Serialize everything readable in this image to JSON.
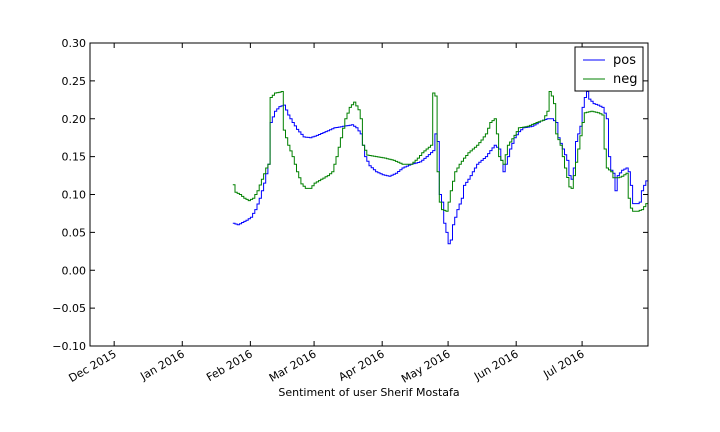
{
  "chart_data": {
    "type": "line",
    "title": "",
    "xlabel": "Sentiment of user Sherif Mostafa",
    "ylabel": "",
    "ylim": [
      -0.1,
      0.3
    ],
    "xlim": [
      "2015-11-20",
      "2016-07-31"
    ],
    "grid": false,
    "legend_position": "top-right",
    "y_ticks": [
      "−0.10",
      "−0.05",
      "0.00",
      "0.05",
      "0.10",
      "0.15",
      "0.20",
      "0.25",
      "0.30"
    ],
    "x_ticks": [
      {
        "date": "2015-12-01",
        "label": "Dec 2015"
      },
      {
        "date": "2016-01-01",
        "label": "Jan 2016"
      },
      {
        "date": "2016-02-01",
        "label": "Feb 2016"
      },
      {
        "date": "2016-03-01",
        "label": "Mar 2016"
      },
      {
        "date": "2016-04-01",
        "label": "Apr 2016"
      },
      {
        "date": "2016-05-01",
        "label": "May 2016"
      },
      {
        "date": "2016-06-01",
        "label": "Jun 2016"
      },
      {
        "date": "2016-07-01",
        "label": "Jul 2016"
      }
    ],
    "series": [
      {
        "name": "pos",
        "color": "#0000ff",
        "points": [
          [
            "2016-01-24",
            0.062
          ],
          [
            "2016-01-26",
            0.06
          ],
          [
            "2016-01-28",
            0.063
          ],
          [
            "2016-01-30",
            0.066
          ],
          [
            "2016-02-01",
            0.07
          ],
          [
            "2016-02-03",
            0.08
          ],
          [
            "2016-02-05",
            0.095
          ],
          [
            "2016-02-07",
            0.115
          ],
          [
            "2016-02-09",
            0.14
          ],
          [
            "2016-02-10",
            0.195
          ],
          [
            "2016-02-12",
            0.21
          ],
          [
            "2016-02-14",
            0.216
          ],
          [
            "2016-02-16",
            0.218
          ],
          [
            "2016-02-18",
            0.205
          ],
          [
            "2016-02-20",
            0.195
          ],
          [
            "2016-02-22",
            0.186
          ],
          [
            "2016-02-25",
            0.176
          ],
          [
            "2016-02-28",
            0.175
          ],
          [
            "2016-03-02",
            0.178
          ],
          [
            "2016-03-06",
            0.183
          ],
          [
            "2016-03-10",
            0.188
          ],
          [
            "2016-03-14",
            0.19
          ],
          [
            "2016-03-18",
            0.192
          ],
          [
            "2016-03-20",
            0.188
          ],
          [
            "2016-03-22",
            0.18
          ],
          [
            "2016-03-24",
            0.15
          ],
          [
            "2016-03-26",
            0.138
          ],
          [
            "2016-03-29",
            0.13
          ],
          [
            "2016-04-01",
            0.126
          ],
          [
            "2016-04-04",
            0.124
          ],
          [
            "2016-04-07",
            0.128
          ],
          [
            "2016-04-10",
            0.135
          ],
          [
            "2016-04-14",
            0.14
          ],
          [
            "2016-04-18",
            0.143
          ],
          [
            "2016-04-21",
            0.15
          ],
          [
            "2016-04-24",
            0.158
          ],
          [
            "2016-04-25",
            0.18
          ],
          [
            "2016-04-26",
            0.17
          ],
          [
            "2016-04-27",
            0.1
          ],
          [
            "2016-04-28",
            0.09
          ],
          [
            "2016-04-29",
            0.062
          ],
          [
            "2016-04-30",
            0.05
          ],
          [
            "2016-05-01",
            0.035
          ],
          [
            "2016-05-02",
            0.04
          ],
          [
            "2016-05-03",
            0.06
          ],
          [
            "2016-05-05",
            0.08
          ],
          [
            "2016-05-07",
            0.095
          ],
          [
            "2016-05-08",
            0.112
          ],
          [
            "2016-05-10",
            0.12
          ],
          [
            "2016-05-12",
            0.13
          ],
          [
            "2016-05-14",
            0.14
          ],
          [
            "2016-05-16",
            0.145
          ],
          [
            "2016-05-18",
            0.15
          ],
          [
            "2016-05-20",
            0.158
          ],
          [
            "2016-05-22",
            0.165
          ],
          [
            "2016-05-24",
            0.16
          ],
          [
            "2016-05-25",
            0.145
          ],
          [
            "2016-05-26",
            0.13
          ],
          [
            "2016-05-27",
            0.14
          ],
          [
            "2016-05-29",
            0.16
          ],
          [
            "2016-05-31",
            0.175
          ],
          [
            "2016-06-02",
            0.183
          ],
          [
            "2016-06-04",
            0.188
          ],
          [
            "2016-06-08",
            0.19
          ],
          [
            "2016-06-12",
            0.197
          ],
          [
            "2016-06-15",
            0.2
          ],
          [
            "2016-06-17",
            0.2
          ],
          [
            "2016-06-19",
            0.195
          ],
          [
            "2016-06-20",
            0.175
          ],
          [
            "2016-06-22",
            0.16
          ],
          [
            "2016-06-24",
            0.145
          ],
          [
            "2016-06-25",
            0.125
          ],
          [
            "2016-06-26",
            0.12
          ],
          [
            "2016-06-27",
            0.135
          ],
          [
            "2016-06-28",
            0.17
          ],
          [
            "2016-06-30",
            0.19
          ],
          [
            "2016-07-01",
            0.215
          ],
          [
            "2016-07-02",
            0.228
          ],
          [
            "2016-07-03",
            0.236
          ],
          [
            "2016-07-04",
            0.226
          ],
          [
            "2016-07-06",
            0.22
          ],
          [
            "2016-07-08",
            0.218
          ],
          [
            "2016-07-10",
            0.215
          ],
          [
            "2016-07-12",
            0.2
          ],
          [
            "2016-07-13",
            0.15
          ],
          [
            "2016-07-14",
            0.132
          ],
          [
            "2016-07-15",
            0.128
          ],
          [
            "2016-07-16",
            0.105
          ],
          [
            "2016-07-17",
            0.125
          ],
          [
            "2016-07-19",
            0.132
          ],
          [
            "2016-07-21",
            0.135
          ],
          [
            "2016-07-22",
            0.13
          ],
          [
            "2016-07-23",
            0.112
          ],
          [
            "2016-07-24",
            0.088
          ],
          [
            "2016-07-26",
            0.088
          ],
          [
            "2016-07-27",
            0.09
          ],
          [
            "2016-07-28",
            0.105
          ],
          [
            "2016-07-29",
            0.112
          ],
          [
            "2016-07-30",
            0.118
          ],
          [
            "2016-07-31",
            0.12
          ]
        ]
      },
      {
        "name": "neg",
        "color": "#008000",
        "points": [
          [
            "2016-01-24",
            0.113
          ],
          [
            "2016-01-25",
            0.103
          ],
          [
            "2016-01-27",
            0.1
          ],
          [
            "2016-01-29",
            0.095
          ],
          [
            "2016-01-31",
            0.092
          ],
          [
            "2016-02-02",
            0.095
          ],
          [
            "2016-02-04",
            0.105
          ],
          [
            "2016-02-06",
            0.12
          ],
          [
            "2016-02-08",
            0.135
          ],
          [
            "2016-02-09",
            0.14
          ],
          [
            "2016-02-10",
            0.228
          ],
          [
            "2016-02-12",
            0.234
          ],
          [
            "2016-02-14",
            0.235
          ],
          [
            "2016-02-15",
            0.236
          ],
          [
            "2016-02-16",
            0.185
          ],
          [
            "2016-02-18",
            0.165
          ],
          [
            "2016-02-20",
            0.15
          ],
          [
            "2016-02-22",
            0.13
          ],
          [
            "2016-02-24",
            0.114
          ],
          [
            "2016-02-26",
            0.108
          ],
          [
            "2016-02-28",
            0.108
          ],
          [
            "2016-03-01",
            0.115
          ],
          [
            "2016-03-04",
            0.12
          ],
          [
            "2016-03-07",
            0.125
          ],
          [
            "2016-03-09",
            0.13
          ],
          [
            "2016-03-11",
            0.15
          ],
          [
            "2016-03-13",
            0.175
          ],
          [
            "2016-03-15",
            0.2
          ],
          [
            "2016-03-17",
            0.215
          ],
          [
            "2016-03-19",
            0.222
          ],
          [
            "2016-03-21",
            0.212
          ],
          [
            "2016-03-22",
            0.2
          ],
          [
            "2016-03-23",
            0.165
          ],
          [
            "2016-03-25",
            0.152
          ],
          [
            "2016-03-29",
            0.15
          ],
          [
            "2016-04-02",
            0.148
          ],
          [
            "2016-04-06",
            0.145
          ],
          [
            "2016-04-10",
            0.14
          ],
          [
            "2016-04-14",
            0.14
          ],
          [
            "2016-04-17",
            0.148
          ],
          [
            "2016-04-19",
            0.155
          ],
          [
            "2016-04-21",
            0.16
          ],
          [
            "2016-04-23",
            0.165
          ],
          [
            "2016-04-24",
            0.234
          ],
          [
            "2016-04-25",
            0.23
          ],
          [
            "2016-04-26",
            0.13
          ],
          [
            "2016-04-27",
            0.09
          ],
          [
            "2016-04-28",
            0.08
          ],
          [
            "2016-04-30",
            0.078
          ],
          [
            "2016-05-01",
            0.09
          ],
          [
            "2016-05-02",
            0.105
          ],
          [
            "2016-05-04",
            0.13
          ],
          [
            "2016-05-06",
            0.14
          ],
          [
            "2016-05-08",
            0.148
          ],
          [
            "2016-05-10",
            0.155
          ],
          [
            "2016-05-12",
            0.16
          ],
          [
            "2016-05-14",
            0.165
          ],
          [
            "2016-05-16",
            0.172
          ],
          [
            "2016-05-18",
            0.18
          ],
          [
            "2016-05-20",
            0.195
          ],
          [
            "2016-05-22",
            0.2
          ],
          [
            "2016-05-23",
            0.18
          ],
          [
            "2016-05-24",
            0.15
          ],
          [
            "2016-05-26",
            0.14
          ],
          [
            "2016-05-28",
            0.165
          ],
          [
            "2016-05-31",
            0.178
          ],
          [
            "2016-06-02",
            0.188
          ],
          [
            "2016-06-06",
            0.19
          ],
          [
            "2016-06-10",
            0.195
          ],
          [
            "2016-06-13",
            0.198
          ],
          [
            "2016-06-15",
            0.21
          ],
          [
            "2016-06-16",
            0.236
          ],
          [
            "2016-06-17",
            0.23
          ],
          [
            "2016-06-18",
            0.22
          ],
          [
            "2016-06-19",
            0.18
          ],
          [
            "2016-06-21",
            0.165
          ],
          [
            "2016-06-23",
            0.135
          ],
          [
            "2016-06-25",
            0.11
          ],
          [
            "2016-06-26",
            0.108
          ],
          [
            "2016-06-27",
            0.125
          ],
          [
            "2016-06-29",
            0.16
          ],
          [
            "2016-07-01",
            0.195
          ],
          [
            "2016-07-02",
            0.208
          ],
          [
            "2016-07-05",
            0.21
          ],
          [
            "2016-07-08",
            0.208
          ],
          [
            "2016-07-10",
            0.205
          ],
          [
            "2016-07-11",
            0.16
          ],
          [
            "2016-07-12",
            0.135
          ],
          [
            "2016-07-14",
            0.13
          ],
          [
            "2016-07-15",
            0.122
          ],
          [
            "2016-07-17",
            0.122
          ],
          [
            "2016-07-19",
            0.124
          ],
          [
            "2016-07-21",
            0.128
          ],
          [
            "2016-07-22",
            0.095
          ],
          [
            "2016-07-23",
            0.082
          ],
          [
            "2016-07-24",
            0.078
          ],
          [
            "2016-07-26",
            0.078
          ],
          [
            "2016-07-28",
            0.08
          ],
          [
            "2016-07-30",
            0.088
          ],
          [
            "2016-07-31",
            0.09
          ]
        ]
      }
    ]
  }
}
